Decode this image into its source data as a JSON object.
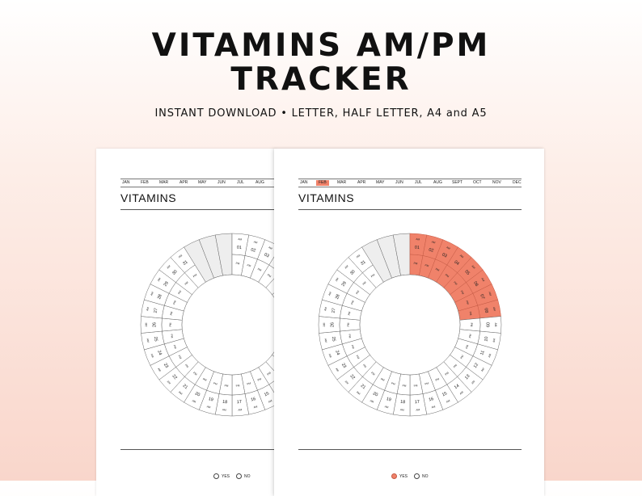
{
  "header": {
    "title_line1": "VITAMINS AM/PM",
    "title_line2": "TRACKER",
    "subtitle": "INSTANT DOWNLOAD  •  LETTER, HALF LETTER, A4 and A5"
  },
  "left_page": {
    "months": [
      "JAN",
      "FEB",
      "MAR",
      "APR",
      "MAY",
      "JUN",
      "JUL",
      "AUG"
    ],
    "title": "VITAMINS",
    "legend": {
      "yes": "YES",
      "no": "NO"
    }
  },
  "right_page": {
    "months": [
      "JAN",
      "FEB",
      "MAR",
      "APR",
      "MAY",
      "JUN",
      "JUL",
      "AUG",
      "SEPT",
      "OCT",
      "NOV",
      "DEC"
    ],
    "active_month": "FEB",
    "title": "VITAMINS",
    "legend": {
      "yes": "YES",
      "no": "NO"
    },
    "filled_days": 8
  },
  "tracker": {
    "days_in_month": 31,
    "am_label": "AM",
    "pm_label": "PM"
  },
  "colors": {
    "accent": "#f0826a",
    "accent_border": "#c55a44",
    "empty_slot": "#eeeeee",
    "line": "#666666"
  }
}
